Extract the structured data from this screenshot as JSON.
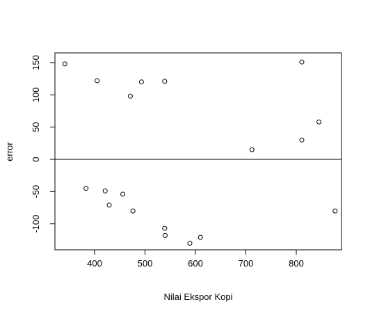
{
  "chart_data": {
    "type": "scatter",
    "title": "",
    "xlabel": "Nilai Ekspor Kopi",
    "ylabel": "error",
    "xlim": [
      330,
      880
    ],
    "ylim": [
      -140,
      165
    ],
    "x_ticks": [
      400,
      500,
      600,
      700,
      800
    ],
    "y_ticks": [
      -100,
      -50,
      0,
      50,
      100,
      150
    ],
    "x_tick_labels": [
      "400",
      "500",
      "600",
      "700",
      "800"
    ],
    "y_tick_labels": [
      "-100",
      "-50",
      "0",
      "50",
      "100",
      "150"
    ],
    "reference_line": {
      "y": 0
    },
    "grid": false,
    "legend": "none",
    "marker": "open-circle",
    "points": [
      {
        "x": 341,
        "y": 148
      },
      {
        "x": 383,
        "y": -45
      },
      {
        "x": 405,
        "y": 122
      },
      {
        "x": 421,
        "y": -49
      },
      {
        "x": 429,
        "y": -71
      },
      {
        "x": 456,
        "y": -54
      },
      {
        "x": 471,
        "y": 98
      },
      {
        "x": 476,
        "y": -80
      },
      {
        "x": 493,
        "y": 120
      },
      {
        "x": 539,
        "y": 121
      },
      {
        "x": 539,
        "y": -107
      },
      {
        "x": 540,
        "y": -118
      },
      {
        "x": 589,
        "y": -130
      },
      {
        "x": 610,
        "y": -121
      },
      {
        "x": 712,
        "y": 15
      },
      {
        "x": 811,
        "y": 151
      },
      {
        "x": 811,
        "y": 30
      },
      {
        "x": 845,
        "y": 58
      },
      {
        "x": 877,
        "y": -80
      }
    ]
  }
}
